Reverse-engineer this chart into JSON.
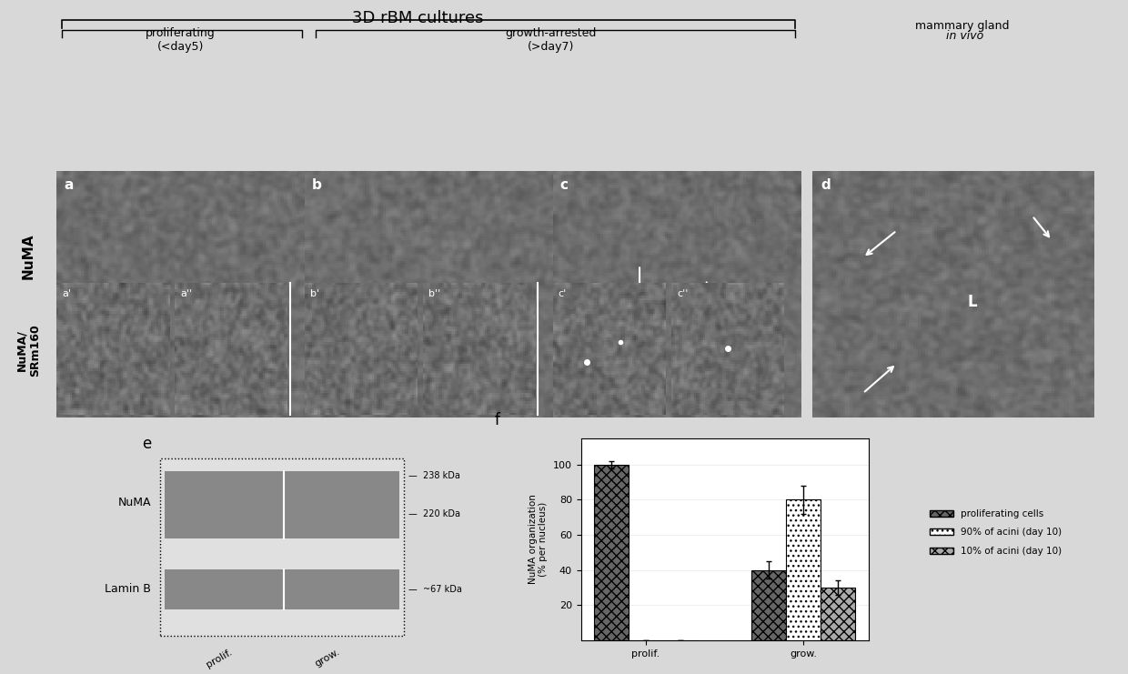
{
  "title_3d": "3D rBM cultures",
  "label_prolif": "proliferating\n(<day5)",
  "label_growth": "growth-arrested\n(>day7)",
  "label_mammary": "mammary gland in vivo",
  "label_numa": "NuMA",
  "label_numa_srm": "NuMA/\nSRm160",
  "panel_labels_top": [
    "a",
    "b",
    "c",
    "d"
  ],
  "panel_labels_small": [
    "a'",
    "a''",
    "b'",
    "b''",
    "c'",
    "c''"
  ],
  "label_e": "e",
  "label_f": "f",
  "numa_label": "NuMA",
  "lamin_label": "Lamin B",
  "kda_238": "238 kDa",
  "kda_220": "220 kDa",
  "kda_67": "~67 kDa",
  "prolif_tick": "prolif.",
  "growth_tick": "grow.",
  "bar_ylabel": "NuMA organization\n(% per nucleus)",
  "y_ticks": [
    20,
    40,
    60,
    80,
    100
  ],
  "bar_groups": [
    "prolif.",
    "grow."
  ],
  "series1_vals": [
    100,
    40
  ],
  "series2_vals": [
    0,
    80
  ],
  "series3_vals": [
    0,
    30
  ],
  "series1_error": [
    2,
    5
  ],
  "series2_error": [
    0,
    8
  ],
  "series3_error": [
    0,
    4
  ],
  "legend_labels": [
    "proliferating cells",
    "90% of acini (day 10)",
    "10% of acini (day 10)"
  ],
  "bg_color": "#c8c8c8",
  "panel_dark": "#555555",
  "panel_medium": "#888888",
  "panel_light": "#aaaaaa",
  "fig_bg": "#d8d8d8"
}
